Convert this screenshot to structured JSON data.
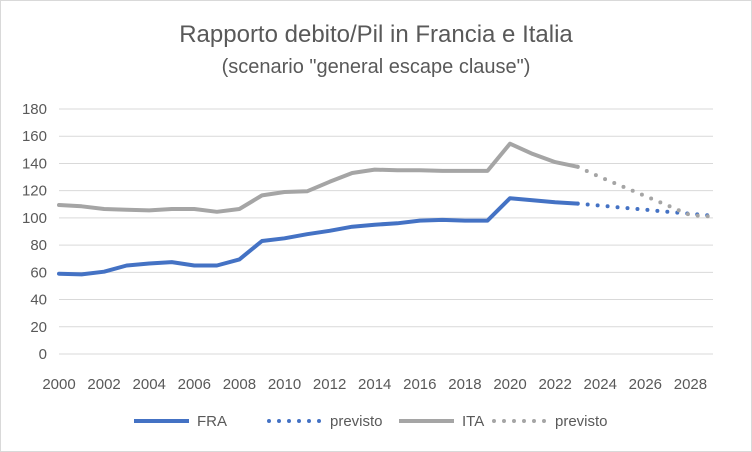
{
  "chart_data": {
    "type": "line",
    "title": "Rapporto debito/Pil in Francia e Italia",
    "subtitle": "(scenario \"general escape clause\")",
    "xlabel": "",
    "ylabel": "",
    "x_ticks": [
      2000,
      2002,
      2004,
      2006,
      2008,
      2010,
      2012,
      2014,
      2016,
      2018,
      2020,
      2022,
      2024,
      2026,
      2028
    ],
    "xlim": [
      2000,
      2029
    ],
    "ylim": [
      0,
      180
    ],
    "y_ticks": [
      0,
      20,
      40,
      60,
      80,
      100,
      120,
      140,
      160,
      180
    ],
    "grid": "horizontal",
    "legend_position": "bottom",
    "series": [
      {
        "name": "FRA",
        "color": "#4472C4",
        "style": "solid",
        "x": [
          2000,
          2001,
          2002,
          2003,
          2004,
          2005,
          2006,
          2007,
          2008,
          2009,
          2010,
          2011,
          2012,
          2013,
          2014,
          2015,
          2016,
          2017,
          2018,
          2019,
          2020,
          2021,
          2022,
          2023
        ],
        "values": [
          59,
          58.5,
          60.5,
          65,
          66.5,
          67.5,
          65,
          65,
          69.5,
          83,
          85,
          88,
          90.5,
          93.5,
          95,
          96,
          98,
          98.5,
          98,
          98,
          114.5,
          113,
          111.5,
          110.5
        ]
      },
      {
        "name": "previsto",
        "color": "#4472C4",
        "style": "dotted",
        "x": [
          2023,
          2024,
          2025,
          2026,
          2027,
          2028,
          2029
        ],
        "values": [
          110.5,
          109,
          107.5,
          106,
          104.5,
          103,
          101.5
        ]
      },
      {
        "name": "ITA",
        "color": "#A5A5A5",
        "style": "solid",
        "x": [
          2000,
          2001,
          2002,
          2003,
          2004,
          2005,
          2006,
          2007,
          2008,
          2009,
          2010,
          2011,
          2012,
          2013,
          2014,
          2015,
          2016,
          2017,
          2018,
          2019,
          2020,
          2021,
          2022,
          2023
        ],
        "values": [
          109.5,
          108.5,
          106.5,
          106,
          105.5,
          106.5,
          106.5,
          104.5,
          106.5,
          116.5,
          119,
          119.5,
          126.5,
          133,
          135.5,
          135,
          135,
          134.5,
          134.5,
          134.5,
          154.5,
          147,
          141,
          137.5
        ]
      },
      {
        "name": "previsto",
        "color": "#A5A5A5",
        "style": "dotted",
        "x": [
          2023,
          2024,
          2025,
          2026,
          2027,
          2028,
          2029
        ],
        "values": [
          137.5,
          130,
          123,
          116,
          109,
          102,
          101
        ]
      }
    ]
  }
}
